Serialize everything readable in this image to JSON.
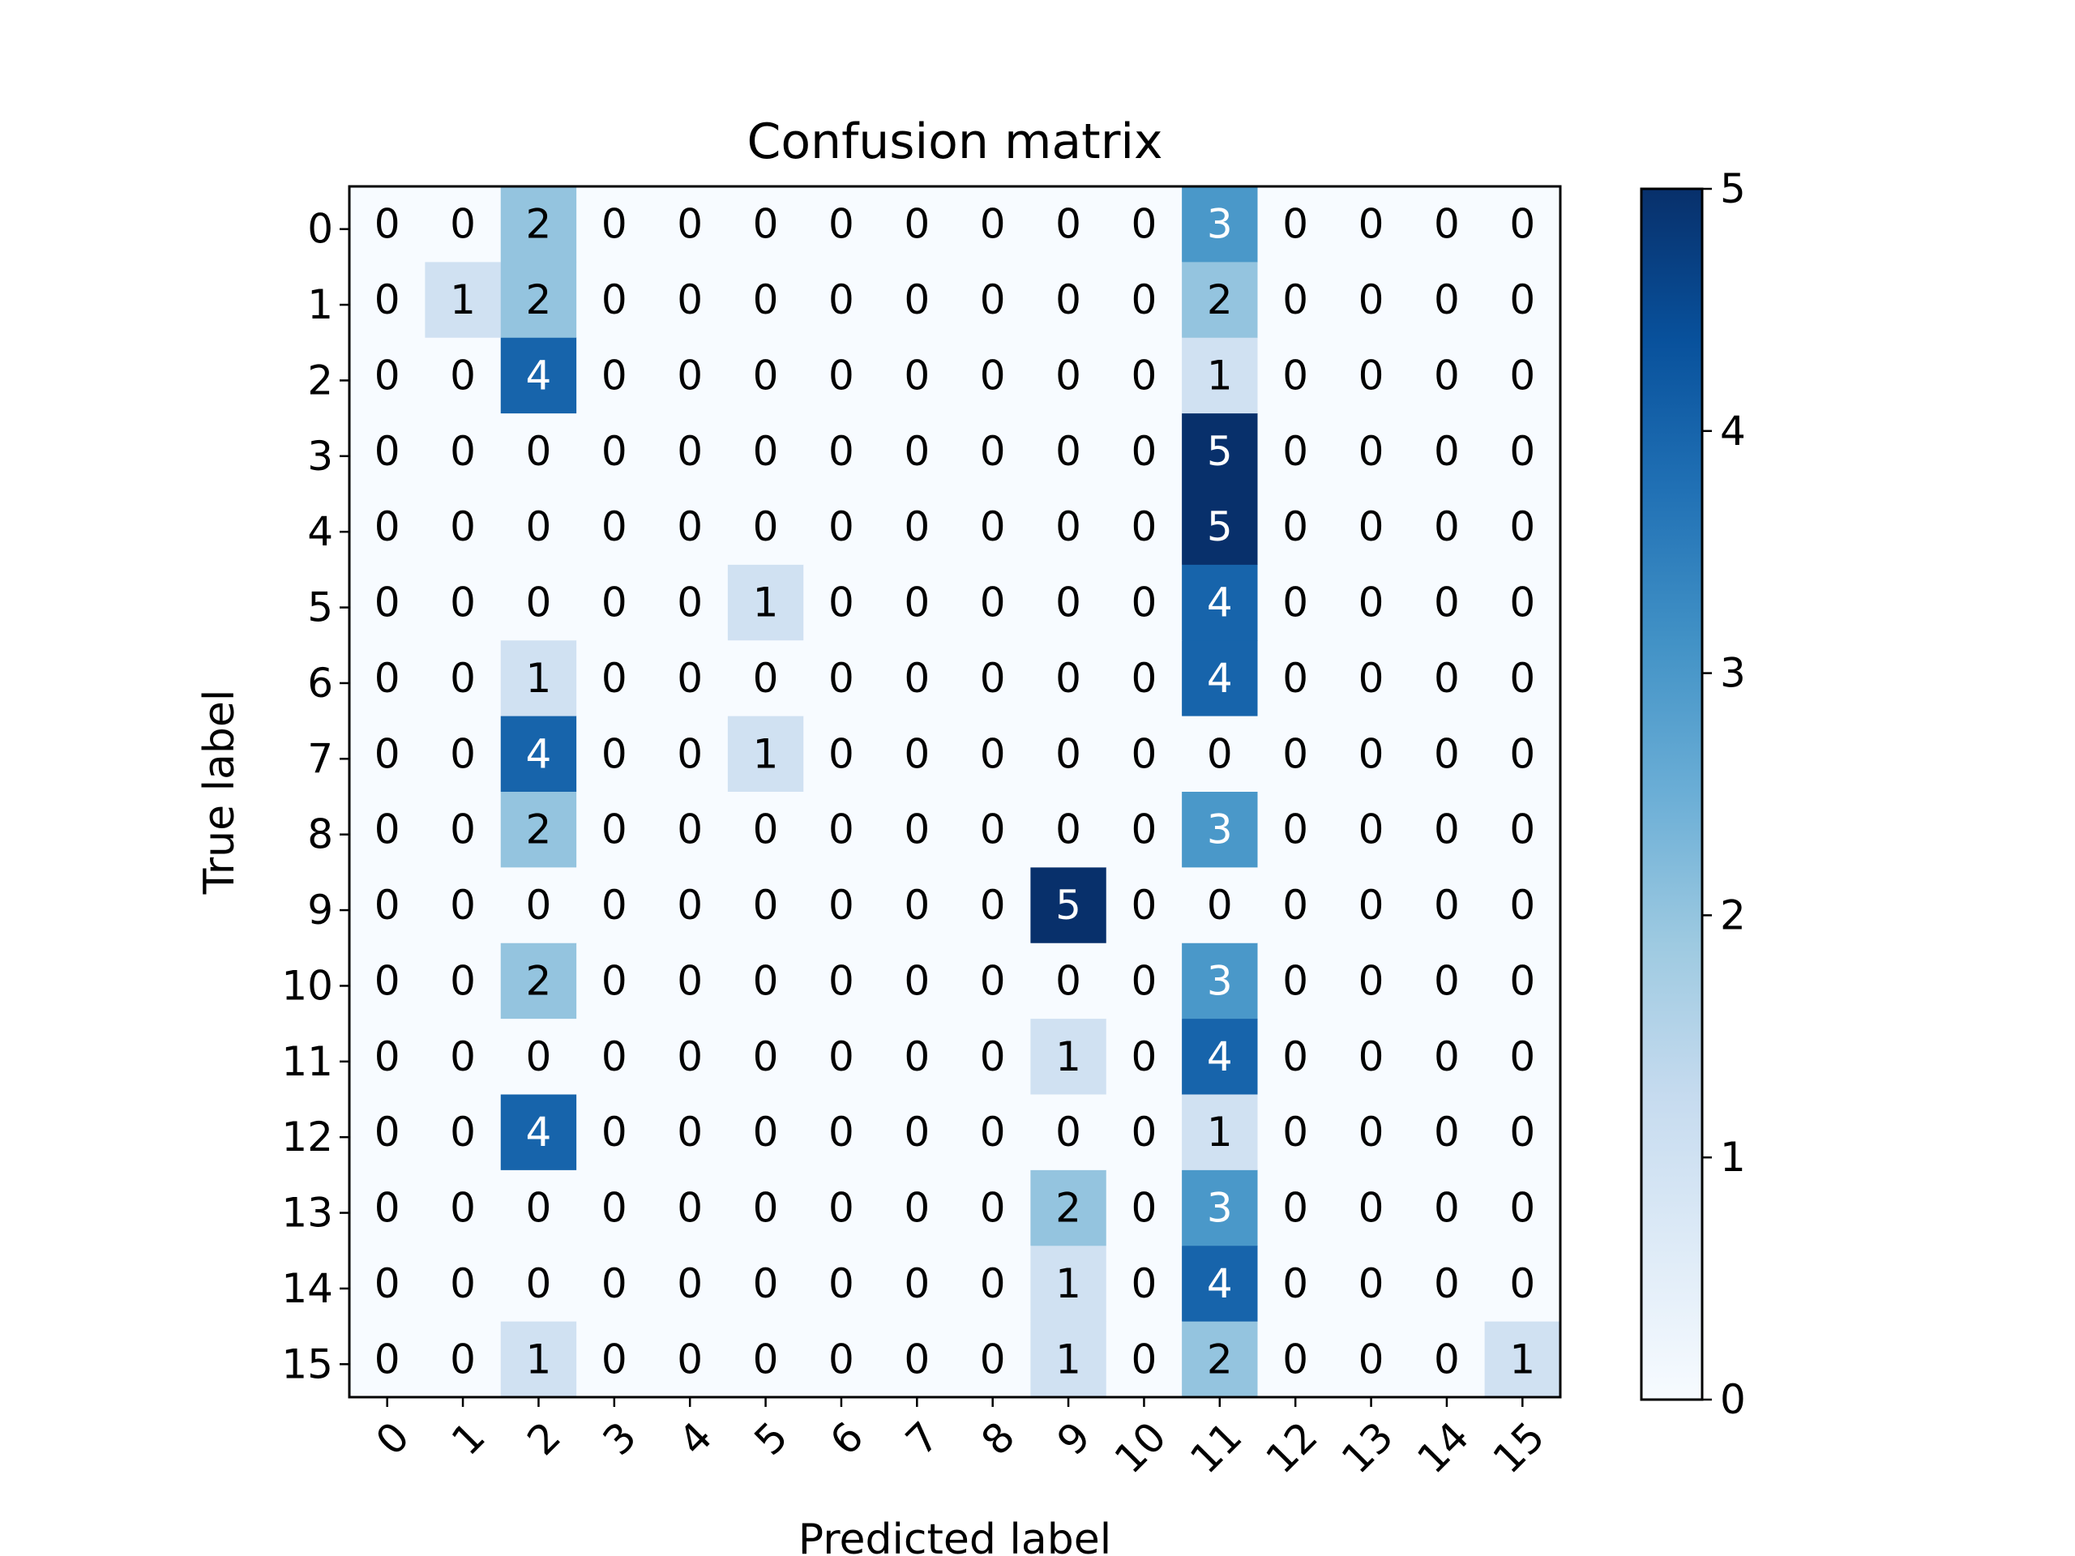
{
  "chart_data": {
    "type": "heatmap",
    "title": "Confusion matrix",
    "xlabel": "Predicted label",
    "ylabel": "True label",
    "x_tick_labels": [
      "0",
      "1",
      "2",
      "3",
      "4",
      "5",
      "6",
      "7",
      "8",
      "9",
      "10",
      "11",
      "12",
      "13",
      "14",
      "15"
    ],
    "y_tick_labels": [
      "0",
      "1",
      "2",
      "3",
      "4",
      "5",
      "6",
      "7",
      "8",
      "9",
      "10",
      "11",
      "12",
      "13",
      "14",
      "15"
    ],
    "matrix": [
      [
        0,
        0,
        2,
        0,
        0,
        0,
        0,
        0,
        0,
        0,
        0,
        3,
        0,
        0,
        0,
        0
      ],
      [
        0,
        1,
        2,
        0,
        0,
        0,
        0,
        0,
        0,
        0,
        0,
        2,
        0,
        0,
        0,
        0
      ],
      [
        0,
        0,
        4,
        0,
        0,
        0,
        0,
        0,
        0,
        0,
        0,
        1,
        0,
        0,
        0,
        0
      ],
      [
        0,
        0,
        0,
        0,
        0,
        0,
        0,
        0,
        0,
        0,
        0,
        5,
        0,
        0,
        0,
        0
      ],
      [
        0,
        0,
        0,
        0,
        0,
        0,
        0,
        0,
        0,
        0,
        0,
        5,
        0,
        0,
        0,
        0
      ],
      [
        0,
        0,
        0,
        0,
        0,
        1,
        0,
        0,
        0,
        0,
        0,
        4,
        0,
        0,
        0,
        0
      ],
      [
        0,
        0,
        1,
        0,
        0,
        0,
        0,
        0,
        0,
        0,
        0,
        4,
        0,
        0,
        0,
        0
      ],
      [
        0,
        0,
        4,
        0,
        0,
        1,
        0,
        0,
        0,
        0,
        0,
        0,
        0,
        0,
        0,
        0
      ],
      [
        0,
        0,
        2,
        0,
        0,
        0,
        0,
        0,
        0,
        0,
        0,
        3,
        0,
        0,
        0,
        0
      ],
      [
        0,
        0,
        0,
        0,
        0,
        0,
        0,
        0,
        0,
        5,
        0,
        0,
        0,
        0,
        0,
        0
      ],
      [
        0,
        0,
        2,
        0,
        0,
        0,
        0,
        0,
        0,
        0,
        0,
        3,
        0,
        0,
        0,
        0
      ],
      [
        0,
        0,
        0,
        0,
        0,
        0,
        0,
        0,
        0,
        1,
        0,
        4,
        0,
        0,
        0,
        0
      ],
      [
        0,
        0,
        4,
        0,
        0,
        0,
        0,
        0,
        0,
        0,
        0,
        1,
        0,
        0,
        0,
        0
      ],
      [
        0,
        0,
        0,
        0,
        0,
        0,
        0,
        0,
        0,
        2,
        0,
        3,
        0,
        0,
        0,
        0
      ],
      [
        0,
        0,
        0,
        0,
        0,
        0,
        0,
        0,
        0,
        1,
        0,
        4,
        0,
        0,
        0,
        0
      ],
      [
        0,
        0,
        1,
        0,
        0,
        0,
        0,
        0,
        0,
        1,
        0,
        2,
        0,
        0,
        0,
        1
      ]
    ],
    "colorbar": {
      "range": [
        0,
        5
      ],
      "ticks": [
        "0",
        "1",
        "2",
        "3",
        "4",
        "5"
      ]
    },
    "colormap": "Blues",
    "colors": {
      "low": "#f7fbff",
      "high": "#08306b",
      "text_dark": "#000000",
      "text_light": "#ffffff"
    }
  }
}
